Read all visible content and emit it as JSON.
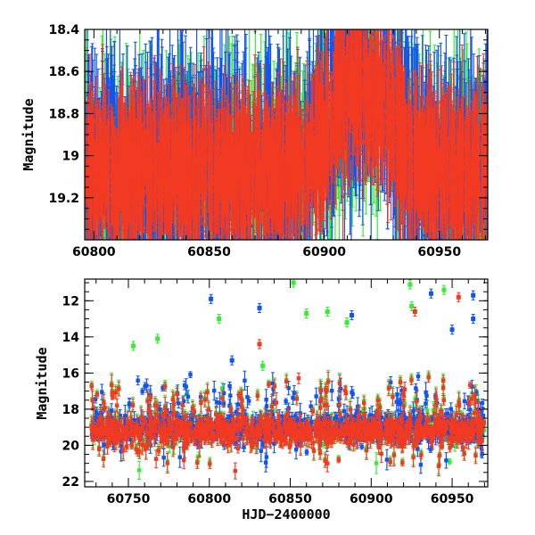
{
  "colors": {
    "green": "#33ee33",
    "blue": "#1155ee",
    "red": "#f23a22",
    "axis": "#000000"
  },
  "chart_data": [
    {
      "type": "scatter",
      "name": "top-panel",
      "ylabel": "Magnitude",
      "xlim": [
        60796,
        60971
      ],
      "ylim": [
        19.4,
        18.4
      ],
      "xticks": [
        60800,
        60850,
        60900,
        60950
      ],
      "yticks": [
        18.4,
        18.6,
        18.8,
        19,
        19.2
      ],
      "ytick_labels": [
        "18.4",
        "18.6",
        "18.8",
        "19",
        "19.2"
      ],
      "series": [
        {
          "name": "green",
          "color": "#33ee33",
          "n_points": 900,
          "base_mag": 19.08,
          "scatter_mag": 0.12,
          "errorbar_mag": 0.25
        },
        {
          "name": "blue",
          "color": "#1155ee",
          "n_points": 1000,
          "base_mag": 19.05,
          "scatter_mag": 0.13,
          "errorbar_mag": 0.28
        },
        {
          "name": "red",
          "color": "#f23a22",
          "n_points": 1600,
          "base_mag": 19.07,
          "scatter_mag": 0.1,
          "errorbar_mag": 0.18
        }
      ],
      "feature": {
        "bright_peak_hjd": 60912,
        "bright_peak_mag": 18.5
      }
    },
    {
      "type": "scatter",
      "name": "bottom-panel",
      "xlabel": "HJD−2400000",
      "ylabel": "Magnitude",
      "xlim": [
        60723,
        60972
      ],
      "ylim": [
        22.3,
        10.8
      ],
      "xticks": [
        60750,
        60800,
        60850,
        60900,
        60950
      ],
      "yticks": [
        12,
        14,
        16,
        18,
        20,
        22
      ],
      "series": [
        {
          "name": "green",
          "color": "#33ee33",
          "n_points": 900,
          "base_mag": 19.1
        },
        {
          "name": "blue",
          "color": "#1155ee",
          "n_points": 800,
          "base_mag": 19.0
        },
        {
          "name": "red",
          "color": "#f23a22",
          "n_points": 900,
          "base_mag": 19.2
        }
      ],
      "outliers": [
        {
          "hjd": 60753,
          "mag": 14.5,
          "series": "green"
        },
        {
          "hjd": 60768,
          "mag": 14.1,
          "series": "green"
        },
        {
          "hjd": 60801,
          "mag": 11.9,
          "series": "blue"
        },
        {
          "hjd": 60806,
          "mag": 13.0,
          "series": "green"
        },
        {
          "hjd": 60814,
          "mag": 15.3,
          "series": "blue"
        },
        {
          "hjd": 60831,
          "mag": 12.4,
          "series": "blue"
        },
        {
          "hjd": 60831,
          "mag": 14.4,
          "series": "red"
        },
        {
          "hjd": 60833,
          "mag": 15.6,
          "series": "green"
        },
        {
          "hjd": 60852,
          "mag": 11.0,
          "series": "green"
        },
        {
          "hjd": 60860,
          "mag": 12.7,
          "series": "green"
        },
        {
          "hjd": 60873,
          "mag": 12.6,
          "series": "green"
        },
        {
          "hjd": 60885,
          "mag": 13.2,
          "series": "green"
        },
        {
          "hjd": 60888,
          "mag": 12.8,
          "series": "blue"
        },
        {
          "hjd": 60924,
          "mag": 11.1,
          "series": "green"
        },
        {
          "hjd": 60925,
          "mag": 12.3,
          "series": "green"
        },
        {
          "hjd": 60927,
          "mag": 12.6,
          "series": "red"
        },
        {
          "hjd": 60937,
          "mag": 11.6,
          "series": "blue"
        },
        {
          "hjd": 60945,
          "mag": 11.4,
          "series": "green"
        },
        {
          "hjd": 60950,
          "mag": 13.6,
          "series": "blue"
        },
        {
          "hjd": 60954,
          "mag": 11.8,
          "series": "red"
        },
        {
          "hjd": 60963,
          "mag": 11.7,
          "series": "blue"
        },
        {
          "hjd": 60963,
          "mag": 13.0,
          "series": "blue"
        }
      ]
    }
  ]
}
